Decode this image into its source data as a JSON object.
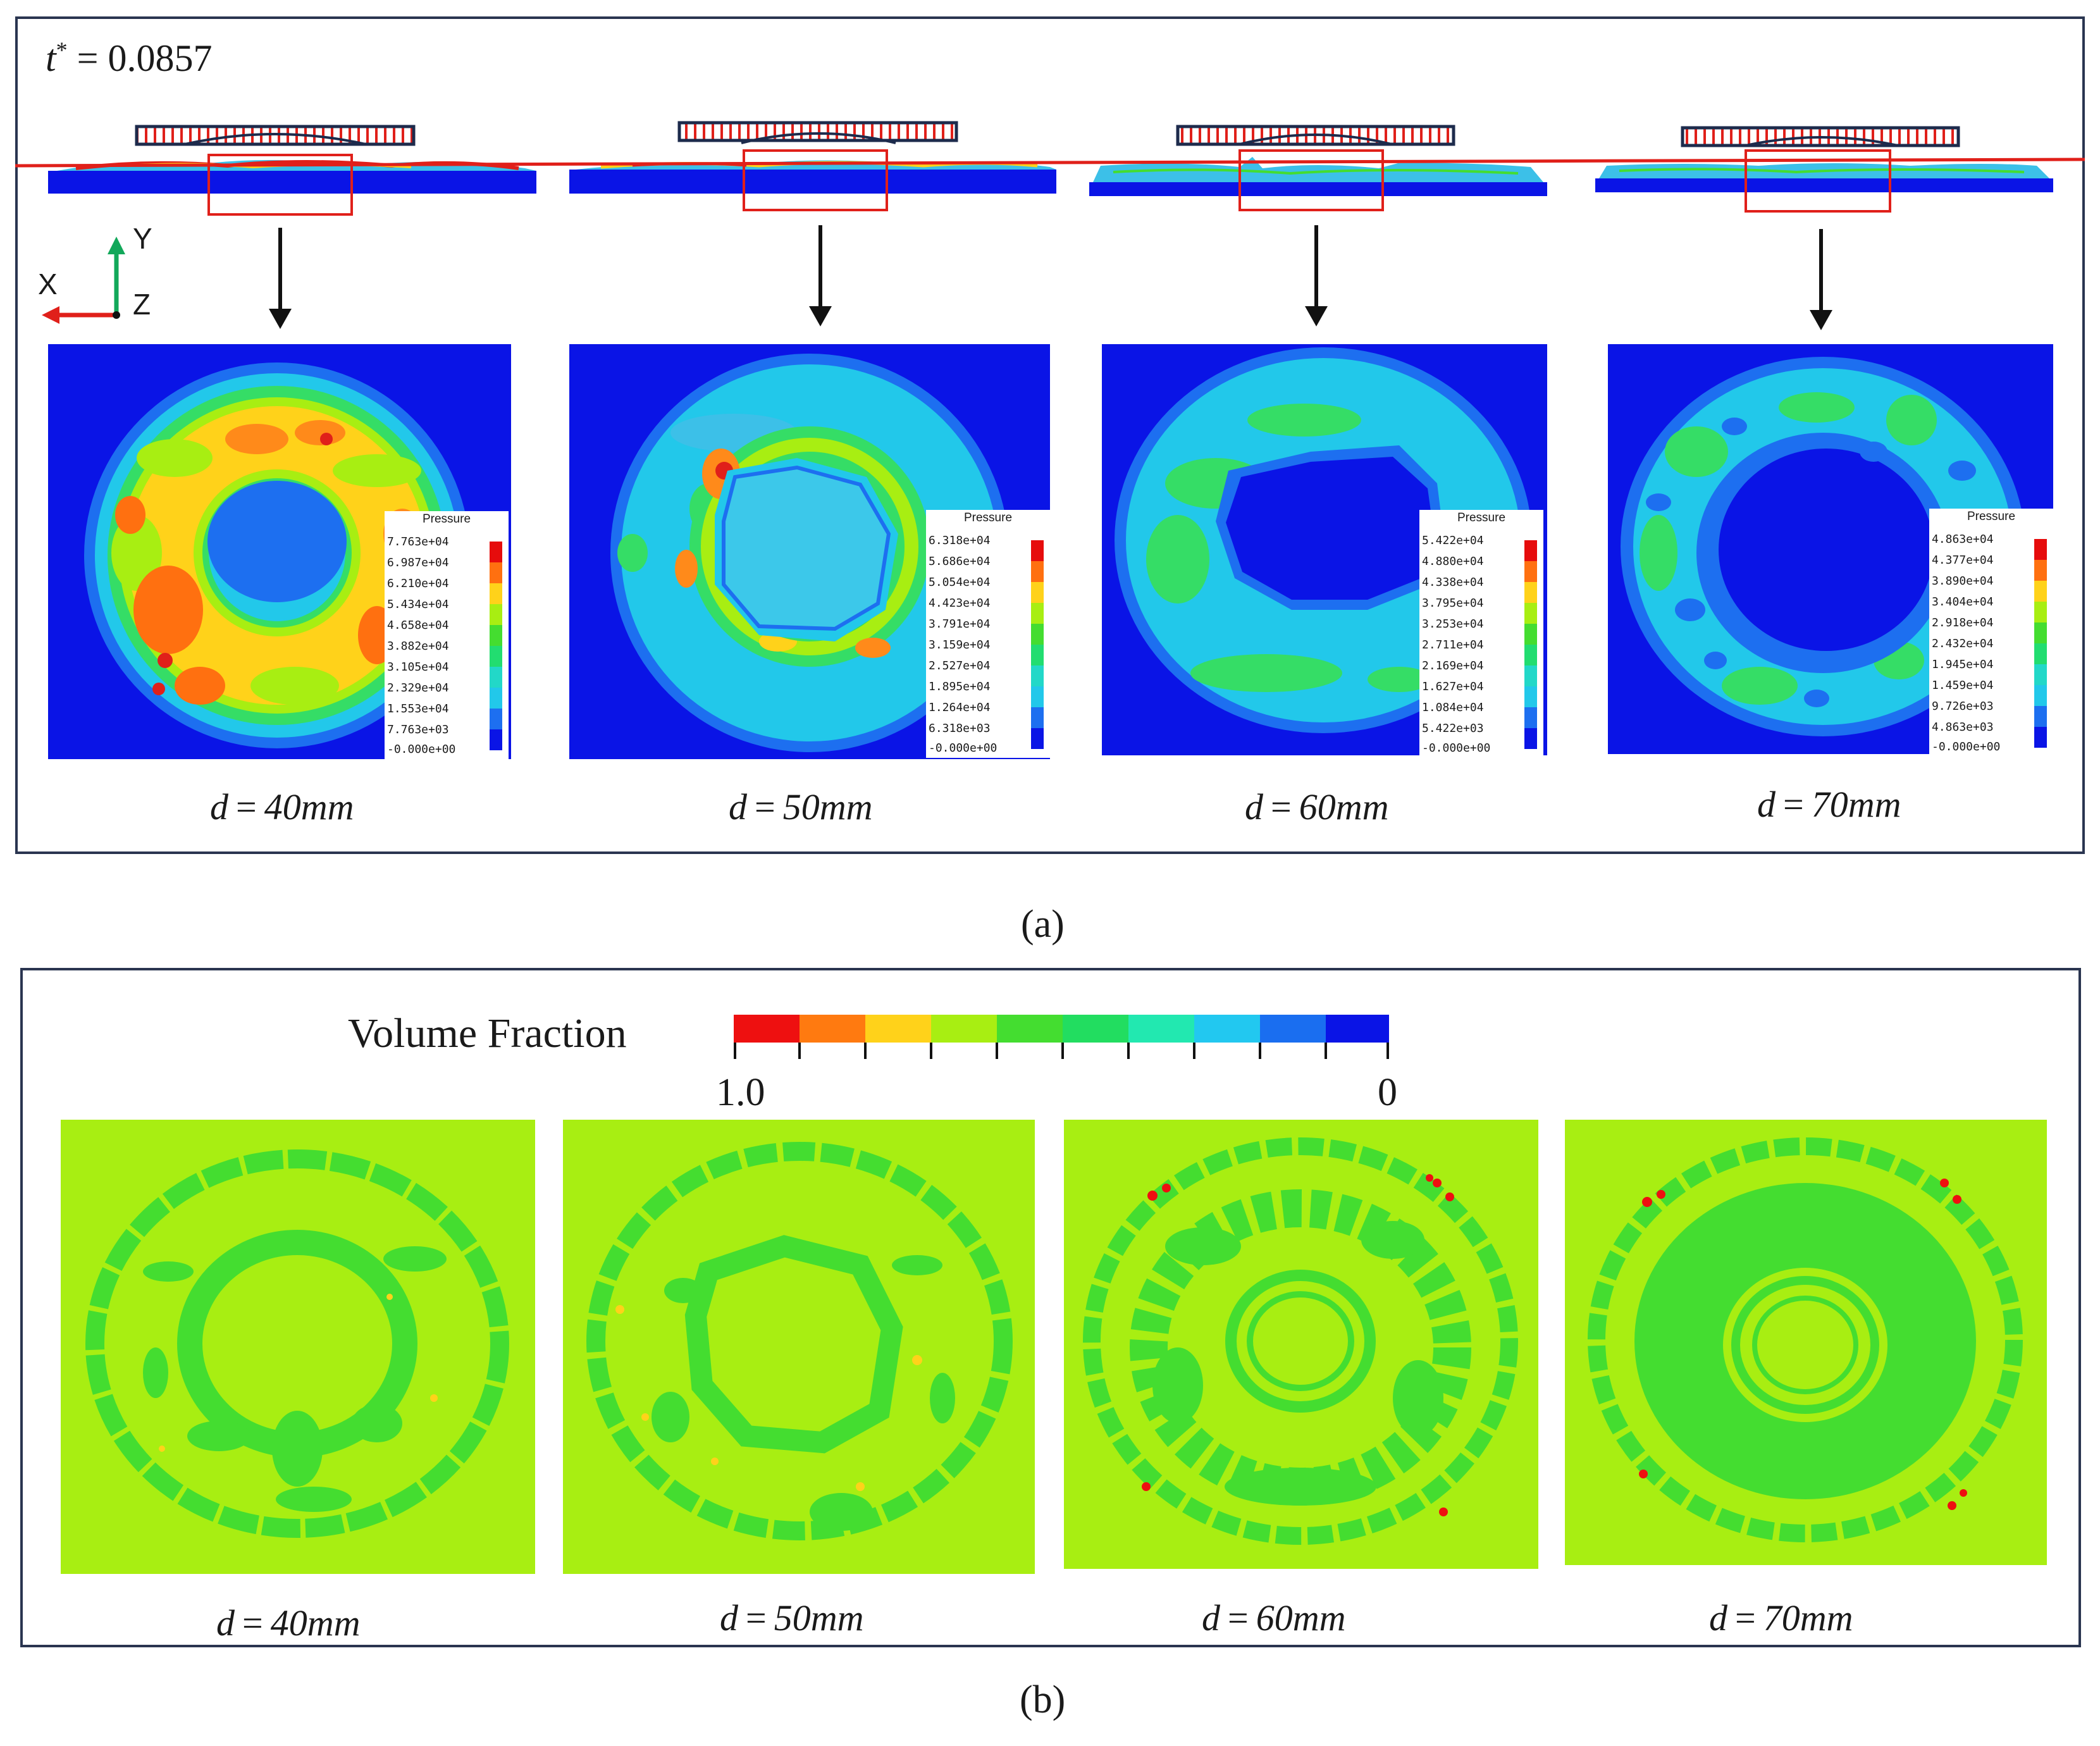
{
  "figure": {
    "time_label": "t",
    "time_sup": "*",
    "time_value": "= 0.0857",
    "axes": {
      "x": "X",
      "y": "Y",
      "z": "Z"
    },
    "panel_a_label": "(a)",
    "panel_b_label": "(b)",
    "colors": {
      "red_line": "#e0201a",
      "blue": "#0a14e6",
      "lime": "#a8ee12",
      "green": "#44dd30",
      "frame": "#2a3550"
    }
  },
  "panel_a": {
    "legend_title": "Pressure",
    "cases": [
      {
        "caption": "d = 40mm",
        "cap_sym": "d",
        "cap_eq": "=",
        "cap_val": "40mm",
        "labels": [
          "7.763e+04",
          "6.987e+04",
          "6.210e+04",
          "5.434e+04",
          "4.658e+04",
          "3.882e+04",
          "3.105e+04",
          "2.329e+04",
          "1.553e+04",
          "7.763e+03",
          "-0.000e+00"
        ]
      },
      {
        "caption": "d = 50mm",
        "cap_sym": "d",
        "cap_eq": "=",
        "cap_val": "50mm",
        "labels": [
          "6.318e+04",
          "5.686e+04",
          "5.054e+04",
          "4.423e+04",
          "3.791e+04",
          "3.159e+04",
          "2.527e+04",
          "1.895e+04",
          "1.264e+04",
          "6.318e+03",
          "-0.000e+00"
        ]
      },
      {
        "caption": "d = 60mm",
        "cap_sym": "d",
        "cap_eq": "=",
        "cap_val": "60mm",
        "labels": [
          "5.422e+04",
          "4.880e+04",
          "4.338e+04",
          "3.795e+04",
          "3.253e+04",
          "2.711e+04",
          "2.169e+04",
          "1.627e+04",
          "1.084e+04",
          "5.422e+03",
          "-0.000e+00"
        ]
      },
      {
        "caption": "d = 70mm",
        "cap_sym": "d",
        "cap_eq": "=",
        "cap_val": "70mm",
        "labels": [
          "4.863e+04",
          "4.377e+04",
          "3.890e+04",
          "3.404e+04",
          "2.918e+04",
          "2.432e+04",
          "1.945e+04",
          "1.459e+04",
          "9.726e+03",
          "4.863e+03",
          "-0.000e+00"
        ]
      }
    ]
  },
  "panel_b": {
    "legend_title": "Volume Fraction",
    "scale_min": "0",
    "scale_max": "1.0",
    "cases": [
      {
        "cap_sym": "d",
        "cap_eq": "=",
        "cap_val": "40mm"
      },
      {
        "cap_sym": "d",
        "cap_eq": "=",
        "cap_val": "50mm"
      },
      {
        "cap_sym": "d",
        "cap_eq": "=",
        "cap_val": "60mm"
      },
      {
        "cap_sym": "d",
        "cap_eq": "=",
        "cap_val": "70mm"
      }
    ]
  }
}
